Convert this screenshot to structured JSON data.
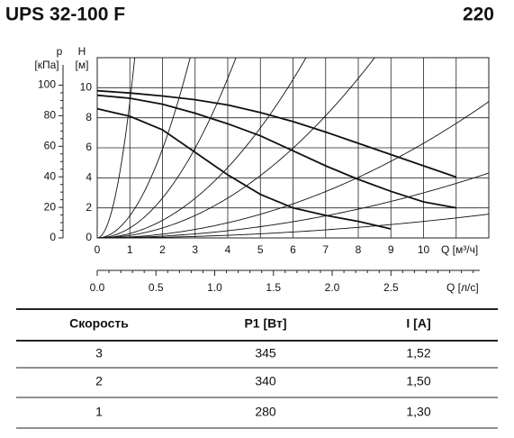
{
  "header": {
    "title": "UPS 32-100 F",
    "model": "220"
  },
  "chart_data": {
    "type": "line",
    "x_label": "Q [м³/ч]",
    "x2_label": "Q [л/с]",
    "y_label": "H",
    "y_unit": "[м]",
    "y2_label": "p",
    "y2_unit": "[кПа]",
    "xlim": [
      0,
      12
    ],
    "xticks": [
      0,
      1,
      2,
      3,
      4,
      5,
      6,
      7,
      8,
      9,
      10
    ],
    "x2lim": [
      0,
      3.333
    ],
    "x2ticks": [
      {
        "value": 0,
        "label": "0.0"
      },
      0.5,
      {
        "value": 1,
        "label": "1.0"
      },
      1.5,
      {
        "value": 2,
        "label": "2.0"
      },
      2.5
    ],
    "ylim": [
      0,
      12
    ],
    "yticks": [
      0,
      2,
      4,
      6,
      8,
      10
    ],
    "y2lim": [
      0,
      118
    ],
    "y2ticks": [
      0,
      20,
      40,
      60,
      80,
      100
    ],
    "grid": true,
    "series": [
      {
        "color": "#111111",
        "x": [
          0,
          1,
          2,
          3,
          4,
          5,
          6,
          7,
          8,
          9,
          10,
          11
        ],
        "values": [
          9.8,
          9.65,
          9.45,
          9.2,
          8.85,
          8.35,
          7.75,
          7.05,
          6.3,
          5.55,
          4.8,
          4.05
        ]
      },
      {
        "color": "#111111",
        "x": [
          0,
          1,
          2,
          3,
          4,
          5,
          6,
          7,
          8,
          9,
          10,
          11
        ],
        "values": [
          9.5,
          9.3,
          8.9,
          8.3,
          7.6,
          6.8,
          5.8,
          4.8,
          3.9,
          3.1,
          2.4,
          2.0
        ]
      },
      {
        "color": "#111111",
        "x": [
          0,
          1,
          2,
          3,
          4,
          5,
          6,
          7,
          8,
          9
        ],
        "values": [
          8.6,
          8.1,
          7.2,
          5.7,
          4.2,
          2.9,
          2.0,
          1.5,
          1.1,
          0.6
        ]
      }
    ]
  },
  "table": {
    "columns": [
      "Скорость",
      "P1 [Вт]",
      "I [A]"
    ],
    "rows": [
      [
        "3",
        "345",
        "1,52"
      ],
      [
        "2",
        "340",
        "1,50"
      ],
      [
        "1",
        "280",
        "1,30"
      ]
    ]
  }
}
